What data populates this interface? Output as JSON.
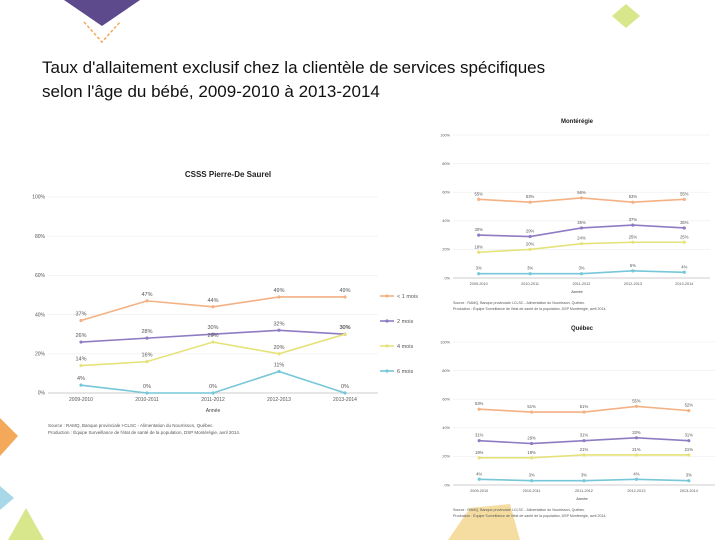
{
  "page": {
    "title_line1": "Taux d'allaitement exclusif chez la clientèle de services spécifiques",
    "title_line2": "selon l'âge du bébé, 2009-2010 à 2013-2014"
  },
  "colors": {
    "s1": "#F4B183",
    "s2": "#8E7CC3",
    "s3": "#E6E27A",
    "s4": "#76C7D9",
    "deco_purple": "#5C4A8C",
    "deco_green": "#D8E68C",
    "deco_orange": "#F4A85A",
    "deco_blue": "#A8D8E8"
  },
  "chart_data": [
    {
      "id": "csss",
      "type": "line",
      "title": "CSSS Pierre-De Saurel",
      "xlabel": "Année",
      "ylabel": "",
      "categories": [
        "2009-2010",
        "2010-2011",
        "2011-2012",
        "2012-2013",
        "2013-2014"
      ],
      "ylim": [
        0,
        100
      ],
      "yticks": [
        0,
        20,
        40,
        60,
        80,
        100
      ],
      "ytick_labels": [
        "0%",
        "20%",
        "40%",
        "60%",
        "80%",
        "100%"
      ],
      "series": [
        {
          "name": "< 1 mois",
          "values": [
            37,
            47,
            44,
            49,
            49
          ],
          "labels": [
            "37%",
            "47%",
            "44%",
            "49%",
            "49%"
          ]
        },
        {
          "name": "2 mois",
          "values": [
            26,
            28,
            30,
            32,
            30
          ],
          "labels": [
            "26%",
            "28%",
            "30%",
            "32%",
            "30%"
          ]
        },
        {
          "name": "4 mois",
          "values": [
            14,
            16,
            26,
            20,
            30
          ],
          "labels": [
            "14%",
            "16%",
            "26%",
            "20%",
            "30%"
          ]
        },
        {
          "name": "6 mois",
          "values": [
            4,
            0,
            0,
            11,
            0
          ],
          "labels": [
            "4%",
            "0%",
            "0%",
            "11%",
            "0%"
          ]
        }
      ],
      "source_line1": "Source : RAMQ, Banque provinciale I-CLSC - Alimentation du Nourrisson, Québec.",
      "source_line2": "Production : Équipe Surveillance de l'état de santé de la population, DSP Montérégie, avril 2014."
    },
    {
      "id": "monteregie",
      "type": "line",
      "title": "Montérégie",
      "xlabel": "Année",
      "ylabel": "",
      "categories": [
        "2009-2010",
        "2010-2011",
        "2011-2012",
        "2012-2013",
        "2013-2014"
      ],
      "ylim": [
        0,
        100
      ],
      "yticks": [
        0,
        20,
        40,
        60,
        80,
        100
      ],
      "ytick_labels": [
        "0%",
        "20%",
        "40%",
        "60%",
        "80%",
        "100%"
      ],
      "series": [
        {
          "name": "< 1 mois",
          "values": [
            55,
            53,
            56,
            53,
            55
          ],
          "labels": [
            "55%",
            "53%",
            "56%",
            "53%",
            "55%"
          ]
        },
        {
          "name": "2 mois",
          "values": [
            30,
            29,
            35,
            37,
            35
          ],
          "labels": [
            "30%",
            "29%",
            "35%",
            "37%",
            "35%"
          ]
        },
        {
          "name": "4 mois",
          "values": [
            18,
            20,
            24,
            25,
            25
          ],
          "labels": [
            "18%",
            "20%",
            "24%",
            "25%",
            "25%"
          ]
        },
        {
          "name": "6 mois",
          "values": [
            3,
            3,
            3,
            5,
            4
          ],
          "labels": [
            "3%",
            "3%",
            "3%",
            "5%",
            "4%"
          ]
        }
      ],
      "source_line1": "Source : RAMQ, Banque provinciale I-CLSC - Alimentation du Nourrisson, Québec.",
      "source_line2": "Production : Équipe Surveillance de l'état de santé de la population, DSP Montérégie, avril 2014."
    },
    {
      "id": "quebec",
      "type": "line",
      "title": "Québec",
      "xlabel": "Année",
      "ylabel": "",
      "categories": [
        "2009-2010",
        "2010-2011",
        "2011-2012",
        "2012-2013",
        "2013-2014"
      ],
      "ylim": [
        0,
        100
      ],
      "yticks": [
        0,
        20,
        40,
        60,
        80,
        100
      ],
      "ytick_labels": [
        "0%",
        "20%",
        "40%",
        "60%",
        "80%",
        "100%"
      ],
      "series": [
        {
          "name": "< 1 mois",
          "values": [
            53,
            51,
            51,
            55,
            52
          ],
          "labels": [
            "53%",
            "51%",
            "51%",
            "55%",
            "52%"
          ]
        },
        {
          "name": "2 mois",
          "values": [
            31,
            29,
            31,
            33,
            31
          ],
          "labels": [
            "31%",
            "29%",
            "31%",
            "33%",
            "31%"
          ]
        },
        {
          "name": "4 mois",
          "values": [
            19,
            19,
            21,
            21,
            21
          ],
          "labels": [
            "19%",
            "19%",
            "21%",
            "21%",
            "21%"
          ]
        },
        {
          "name": "6 mois",
          "values": [
            4,
            3,
            3,
            4,
            3
          ],
          "labels": [
            "4%",
            "3%",
            "3%",
            "4%",
            "3%"
          ]
        }
      ],
      "source_line1": "Source : RAMQ, Banque provinciale I-CLSC - Alimentation du Nourrisson, Québec.",
      "source_line2": "Production : Équipe Surveillance de l'état de santé de la population, DSP Montérégie, avril 2014."
    }
  ]
}
